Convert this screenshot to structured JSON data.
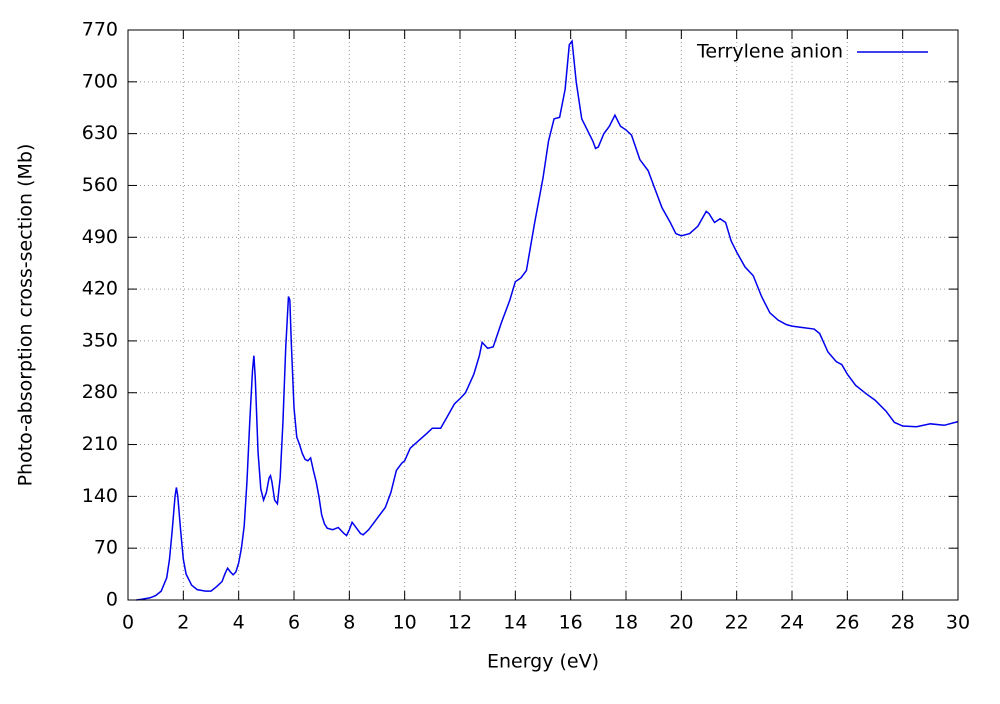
{
  "chart_data": {
    "type": "line",
    "xlabel": "Energy (eV)",
    "ylabel": "Photo-absorption cross-section (Mb)",
    "x": [
      0.3,
      0.5,
      0.8,
      1.0,
      1.2,
      1.4,
      1.5,
      1.6,
      1.7,
      1.75,
      1.8,
      1.9,
      2.0,
      2.1,
      2.3,
      2.5,
      2.8,
      3.0,
      3.2,
      3.4,
      3.5,
      3.6,
      3.7,
      3.8,
      3.9,
      4.0,
      4.1,
      4.2,
      4.3,
      4.4,
      4.5,
      4.55,
      4.6,
      4.7,
      4.8,
      4.9,
      5.0,
      5.1,
      5.15,
      5.2,
      5.3,
      5.4,
      5.5,
      5.6,
      5.7,
      5.8,
      5.85,
      5.9,
      6.0,
      6.1,
      6.2,
      6.3,
      6.4,
      6.5,
      6.6,
      6.7,
      6.8,
      6.9,
      7.0,
      7.1,
      7.2,
      7.4,
      7.6,
      7.8,
      7.9,
      8.0,
      8.1,
      8.2,
      8.4,
      8.5,
      8.7,
      9.0,
      9.3,
      9.5,
      9.7,
      9.9,
      10.0,
      10.2,
      10.5,
      10.8,
      11.0,
      11.3,
      11.5,
      11.8,
      12.0,
      12.2,
      12.5,
      12.7,
      12.8,
      13.0,
      13.2,
      13.5,
      13.8,
      14.0,
      14.2,
      14.4,
      14.7,
      15.0,
      15.2,
      15.4,
      15.6,
      15.8,
      15.95,
      16.05,
      16.2,
      16.4,
      16.6,
      16.8,
      16.9,
      17.0,
      17.2,
      17.4,
      17.6,
      17.8,
      18.0,
      18.2,
      18.5,
      18.8,
      19.0,
      19.3,
      19.6,
      19.8,
      20.0,
      20.3,
      20.6,
      20.9,
      21.0,
      21.2,
      21.4,
      21.6,
      21.8,
      22.0,
      22.3,
      22.6,
      22.9,
      23.2,
      23.5,
      23.8,
      24.0,
      24.4,
      24.8,
      25.0,
      25.3,
      25.6,
      25.8,
      26.0,
      26.3,
      26.7,
      27.0,
      27.4,
      27.7,
      28.0,
      28.5,
      29.0,
      29.5,
      30.0
    ],
    "series": [
      {
        "name": "Terrylene anion",
        "color": "#0000ee",
        "values": [
          0,
          1,
          3,
          6,
          12,
          30,
          55,
          95,
          140,
          152,
          140,
          95,
          55,
          35,
          20,
          14,
          12,
          12,
          18,
          25,
          35,
          43,
          38,
          34,
          38,
          50,
          70,
          100,
          160,
          240,
          310,
          330,
          300,
          200,
          150,
          135,
          145,
          165,
          168,
          160,
          135,
          130,
          165,
          240,
          340,
          410,
          405,
          350,
          260,
          220,
          210,
          198,
          190,
          188,
          192,
          175,
          160,
          140,
          115,
          103,
          97,
          95,
          98,
          90,
          87,
          95,
          105,
          100,
          90,
          88,
          95,
          110,
          125,
          145,
          175,
          185,
          188,
          205,
          215,
          225,
          232,
          232,
          245,
          265,
          272,
          280,
          305,
          330,
          348,
          340,
          342,
          375,
          405,
          430,
          435,
          445,
          510,
          570,
          620,
          650,
          652,
          690,
          750,
          755,
          700,
          650,
          635,
          620,
          610,
          612,
          630,
          640,
          655,
          640,
          635,
          628,
          595,
          580,
          560,
          530,
          510,
          495,
          492,
          495,
          505,
          525,
          522,
          510,
          515,
          510,
          485,
          470,
          450,
          438,
          410,
          388,
          378,
          372,
          370,
          368,
          366,
          360,
          335,
          322,
          318,
          305,
          290,
          278,
          270,
          255,
          240,
          235,
          234,
          238,
          236,
          241
        ]
      }
    ],
    "xlim": [
      0,
      30
    ],
    "xticks": [
      0,
      2,
      4,
      6,
      8,
      10,
      12,
      14,
      16,
      18,
      20,
      22,
      24,
      26,
      28,
      30
    ],
    "ylim": [
      0,
      770
    ],
    "yticks": [
      0,
      70,
      140,
      210,
      280,
      350,
      420,
      490,
      560,
      630,
      700,
      770
    ],
    "grid": true,
    "legend": "top-right"
  }
}
